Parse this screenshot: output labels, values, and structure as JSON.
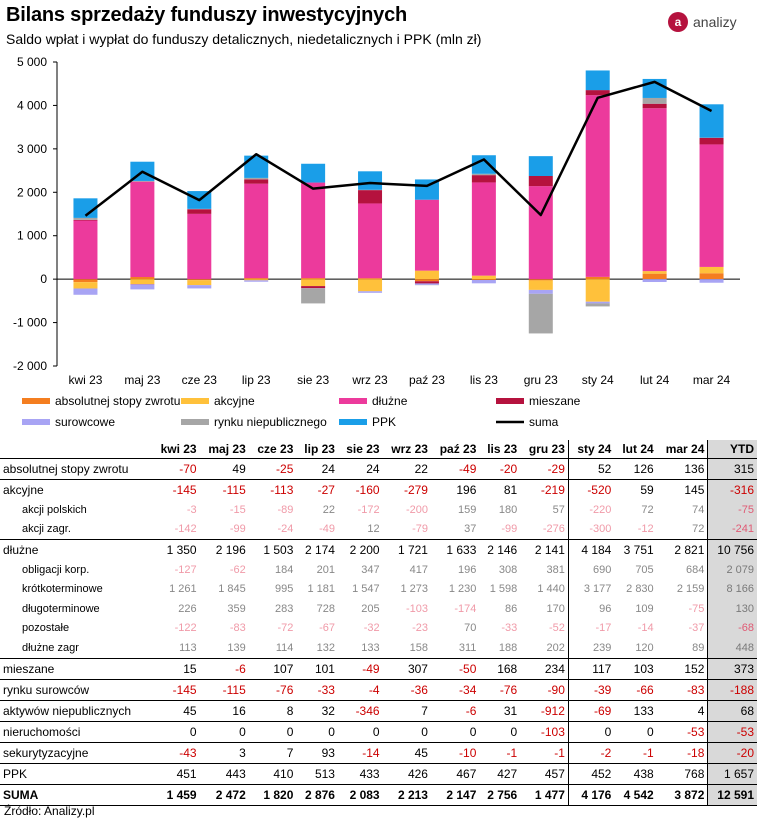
{
  "header": {
    "title": "Bilans sprzedaży funduszy inwestycyjnych",
    "subtitle": "Saldo wpłat i wypłat do funduszy detalicznych, niedetalicznych i PPK (mln zł)",
    "logo_text": "analizy",
    "logo_mark": "a"
  },
  "source": "Źródło: Analizy.pl",
  "chart_data": {
    "type": "bar",
    "stacked": true,
    "categories": [
      "kwi 23",
      "maj 23",
      "cze 23",
      "lip 23",
      "sie 23",
      "wrz 23",
      "paź 23",
      "lis 23",
      "gru 23",
      "sty 24",
      "lut 24",
      "mar 24"
    ],
    "ylim": [
      -2000,
      5000
    ],
    "yticks": [
      -2000,
      -1000,
      0,
      1000,
      2000,
      3000,
      4000,
      5000
    ],
    "ytick_labels": [
      "-2 000",
      "-1 000",
      "0",
      "1 000",
      "2 000",
      "3 000",
      "4 000",
      "5 000"
    ],
    "grid": false,
    "legend_placement": "bottom",
    "series": [
      {
        "name": "absolutnej stopy zwrotu",
        "color": "#f47e20",
        "values": [
          -70,
          49,
          -25,
          24,
          24,
          22,
          -49,
          -20,
          -29,
          52,
          126,
          136
        ]
      },
      {
        "name": "akcyjne",
        "color": "#ffc13b",
        "values": [
          -145,
          -115,
          -113,
          -27,
          -160,
          -279,
          196,
          81,
          -219,
          -520,
          59,
          145
        ]
      },
      {
        "name": "dłużne",
        "color": "#ec3a9c",
        "values": [
          1350,
          2196,
          1503,
          2174,
          2200,
          1721,
          1633,
          2146,
          2141,
          4184,
          3751,
          2821
        ]
      },
      {
        "name": "mieszane",
        "color": "#b5123e",
        "values": [
          15,
          -6,
          107,
          101,
          -49,
          307,
          -50,
          168,
          234,
          117,
          103,
          152
        ]
      },
      {
        "name": "surowcowe",
        "color": "#a8a4f4",
        "values": [
          -145,
          -115,
          -76,
          -33,
          -4,
          -36,
          -34,
          -76,
          -90,
          -39,
          -66,
          -83
        ]
      },
      {
        "name": "rynku niepublicznego",
        "color": "#a6a6a6",
        "values": [
          45,
          16,
          8,
          32,
          -346,
          7,
          -6,
          31,
          -912,
          -69,
          133,
          4
        ]
      },
      {
        "name": "PPK",
        "color": "#1a9ee8",
        "values": [
          451,
          443,
          410,
          513,
          433,
          426,
          467,
          427,
          457,
          452,
          438,
          768
        ]
      }
    ],
    "line": {
      "name": "suma",
      "color": "#000000",
      "values": [
        1459,
        2472,
        1820,
        2876,
        2083,
        2213,
        2147,
        2756,
        1477,
        4176,
        4542,
        3872
      ]
    }
  },
  "table": {
    "columns": [
      "kwi 23",
      "maj 23",
      "cze 23",
      "lip 23",
      "sie 23",
      "wrz 23",
      "paź 23",
      "lis 23",
      "gru 23",
      "sty 24",
      "lut 24",
      "mar 24",
      "YTD"
    ],
    "rows": [
      {
        "label": "absolutnej stopy zwrotu",
        "type": "main",
        "values": [
          "-70",
          "49",
          "-25",
          "24",
          "24",
          "22",
          "-49",
          "-20",
          "-29",
          "52",
          "126",
          "136",
          "315"
        ]
      },
      {
        "label": "akcyjne",
        "type": "main",
        "values": [
          "-145",
          "-115",
          "-113",
          "-27",
          "-160",
          "-279",
          "196",
          "81",
          "-219",
          "-520",
          "59",
          "145",
          "-316"
        ]
      },
      {
        "label": "akcji polskich",
        "type": "sub",
        "values": [
          "-3",
          "-15",
          "-89",
          "22",
          "-172",
          "-200",
          "159",
          "180",
          "57",
          "-220",
          "72",
          "74",
          "-75"
        ]
      },
      {
        "label": "akcji zagr.",
        "type": "sub",
        "values": [
          "-142",
          "-99",
          "-24",
          "-49",
          "12",
          "-79",
          "37",
          "-99",
          "-276",
          "-300",
          "-12",
          "72",
          "-241"
        ]
      },
      {
        "label": "dłużne",
        "type": "main",
        "values": [
          "1 350",
          "2 196",
          "1 503",
          "2 174",
          "2 200",
          "1 721",
          "1 633",
          "2 146",
          "2 141",
          "4 184",
          "3 751",
          "2 821",
          "10 756"
        ]
      },
      {
        "label": "obligacji korp.",
        "type": "sub",
        "values": [
          "-127",
          "-62",
          "184",
          "201",
          "347",
          "417",
          "196",
          "308",
          "381",
          "690",
          "705",
          "684",
          "2 079"
        ]
      },
      {
        "label": "krótkoterminowe",
        "type": "sub",
        "values": [
          "1 261",
          "1 845",
          "995",
          "1 181",
          "1 547",
          "1 273",
          "1 230",
          "1 598",
          "1 440",
          "3 177",
          "2 830",
          "2 159",
          "8 166"
        ]
      },
      {
        "label": "długoterminowe",
        "type": "sub",
        "values": [
          "226",
          "359",
          "283",
          "728",
          "205",
          "-103",
          "-174",
          "86",
          "170",
          "96",
          "109",
          "-75",
          "130"
        ]
      },
      {
        "label": "pozostałe",
        "type": "sub",
        "values": [
          "-122",
          "-83",
          "-72",
          "-67",
          "-32",
          "-23",
          "70",
          "-33",
          "-52",
          "-17",
          "-14",
          "-37",
          "-68"
        ]
      },
      {
        "label": "dłużne zagr",
        "type": "sub",
        "values": [
          "113",
          "139",
          "114",
          "132",
          "133",
          "158",
          "311",
          "188",
          "202",
          "239",
          "120",
          "89",
          "448"
        ]
      },
      {
        "label": "mieszane",
        "type": "main",
        "values": [
          "15",
          "-6",
          "107",
          "101",
          "-49",
          "307",
          "-50",
          "168",
          "234",
          "117",
          "103",
          "152",
          "373"
        ]
      },
      {
        "label": "rynku surowców",
        "type": "main",
        "values": [
          "-145",
          "-115",
          "-76",
          "-33",
          "-4",
          "-36",
          "-34",
          "-76",
          "-90",
          "-39",
          "-66",
          "-83",
          "-188"
        ]
      },
      {
        "label": "aktywów niepublicznych",
        "type": "main",
        "values": [
          "45",
          "16",
          "8",
          "32",
          "-346",
          "7",
          "-6",
          "31",
          "-912",
          "-69",
          "133",
          "4",
          "68"
        ]
      },
      {
        "label": "nieruchomości",
        "type": "main",
        "values": [
          "0",
          "0",
          "0",
          "0",
          "0",
          "0",
          "0",
          "0",
          "-103",
          "0",
          "0",
          "-53",
          "-53"
        ]
      },
      {
        "label": "sekurytyzacyjne",
        "type": "main",
        "values": [
          "-43",
          "3",
          "7",
          "93",
          "-14",
          "45",
          "-10",
          "-1",
          "-1",
          "-2",
          "-1",
          "-18",
          "-20"
        ]
      },
      {
        "label": "PPK",
        "type": "main",
        "values": [
          "451",
          "443",
          "410",
          "513",
          "433",
          "426",
          "467",
          "427",
          "457",
          "452",
          "438",
          "768",
          "1 657"
        ]
      },
      {
        "label": "SUMA",
        "type": "suma",
        "values": [
          "1 459",
          "2 472",
          "1 820",
          "2 876",
          "2 083",
          "2 213",
          "2 147",
          "2 756",
          "1 477",
          "4 176",
          "4 542",
          "3 872",
          "12 591"
        ]
      }
    ]
  }
}
